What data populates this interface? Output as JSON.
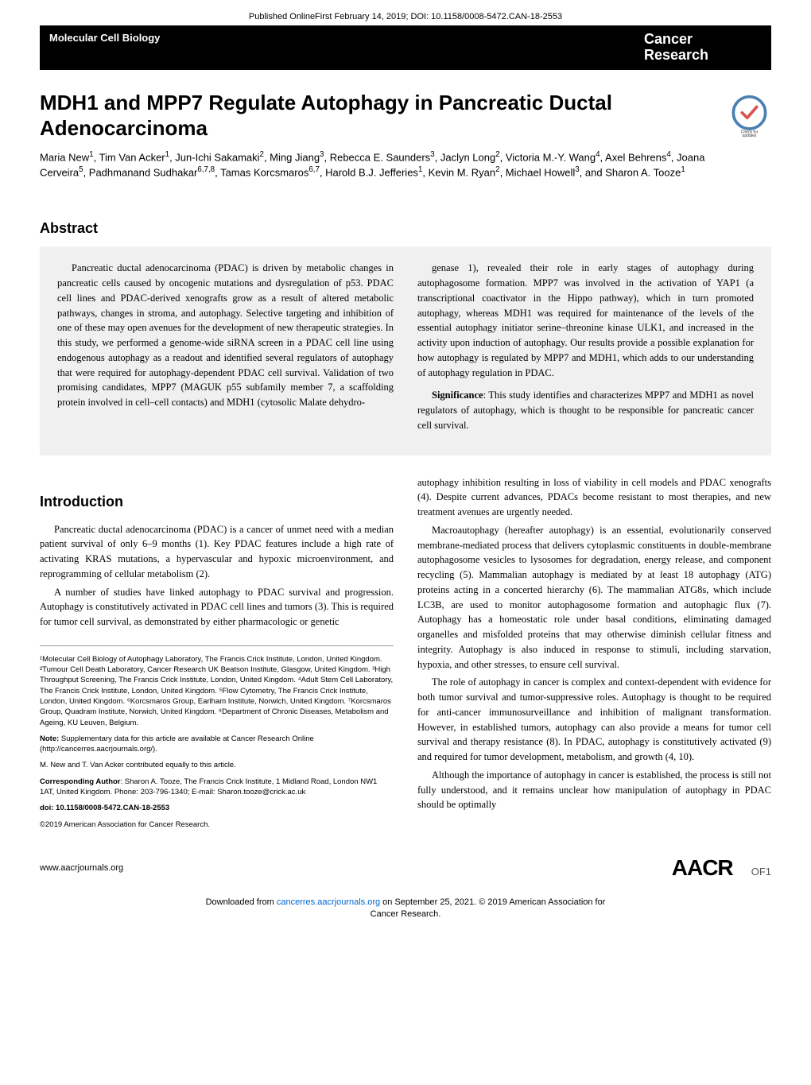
{
  "top_header": "Published OnlineFirst February 14, 2019; DOI: 10.1158/0008-5472.CAN-18-2553",
  "banner": {
    "left": "Molecular Cell Biology",
    "right_line1": "Cancer",
    "right_line2": "Research"
  },
  "title": "MDH1 and MPP7 Regulate Autophagy in Pancreatic Ductal Adenocarcinoma",
  "authors_html": "Maria New<sup>1</sup>, Tim Van Acker<sup>1</sup>, Jun-Ichi Sakamaki<sup>2</sup>, Ming Jiang<sup>3</sup>, Rebecca E. Saunders<sup>3</sup>, Jaclyn Long<sup>2</sup>, Victoria M.-Y. Wang<sup>4</sup>, Axel Behrens<sup>4</sup>, Joana Cerveira<sup>5</sup>, Padhmanand Sudhakar<sup>6,7,8</sup>, Tamas Korcsmaros<sup>6,7</sup>, Harold B.J. Jefferies<sup>1</sup>, Kevin M. Ryan<sup>2</sup>, Michael Howell<sup>3</sup>, and Sharon A. Tooze<sup>1</sup>",
  "badge_label": "Check for updates",
  "abstract_heading": "Abstract",
  "abstract": {
    "left": "Pancreatic ductal adenocarcinoma (PDAC) is driven by metabolic changes in pancreatic cells caused by oncogenic mutations and dysregulation of p53. PDAC cell lines and PDAC-derived xenografts grow as a result of altered metabolic pathways, changes in stroma, and autophagy. Selective targeting and inhibition of one of these may open avenues for the development of new therapeutic strategies. In this study, we performed a genome-wide siRNA screen in a PDAC cell line using endogenous autophagy as a readout and identified several regulators of autophagy that were required for autophagy-dependent PDAC cell survival. Validation of two promising candidates, MPP7 (MAGUK p55 subfamily member 7, a scaffolding protein involved in cell–cell contacts) and MDH1 (cytosolic Malate dehydro-",
    "right_p1": "genase 1), revealed their role in early stages of autophagy during autophagosome formation. MPP7 was involved in the activation of YAP1 (a transcriptional coactivator in the Hippo pathway), which in turn promoted autophagy, whereas MDH1 was required for maintenance of the levels of the essential autophagy initiator serine–threonine kinase ULK1, and increased in the activity upon induction of autophagy. Our results provide a possible explanation for how autophagy is regulated by MPP7 and MDH1, which adds to our understanding of autophagy regulation in PDAC.",
    "right_sig": "Significance: This study identifies and characterizes MPP7 and MDH1 as novel regulators of autophagy, which is thought to be responsible for pancreatic cancer cell survival."
  },
  "intro_heading": "Introduction",
  "intro": {
    "left_p1": "Pancreatic ductal adenocarcinoma (PDAC) is a cancer of unmet need with a median patient survival of only 6–9 months (1). Key PDAC features include a high rate of activating KRAS mutations, a hypervascular and hypoxic microenvironment, and reprogramming of cellular metabolism (2).",
    "left_p2": "A number of studies have linked autophagy to PDAC survival and progression. Autophagy is constitutively activated in PDAC cell lines and tumors (3). This is required for tumor cell survival, as demonstrated by either pharmacologic or genetic",
    "right_p1": "autophagy inhibition resulting in loss of viability in cell models and PDAC xenografts (4). Despite current advances, PDACs become resistant to most therapies, and new treatment avenues are urgently needed.",
    "right_p2": "Macroautophagy (hereafter autophagy) is an essential, evolutionarily conserved membrane-mediated process that delivers cytoplasmic constituents in double-membrane autophagosome vesicles to lysosomes for degradation, energy release, and component recycling (5). Mammalian autophagy is mediated by at least 18 autophagy (ATG) proteins acting in a concerted hierarchy (6). The mammalian ATG8s, which include LC3B, are used to monitor autophagosome formation and autophagic flux (7). Autophagy has a homeostatic role under basal conditions, eliminating damaged organelles and misfolded proteins that may otherwise diminish cellular fitness and integrity. Autophagy is also induced in response to stimuli, including starvation, hypoxia, and other stresses, to ensure cell survival.",
    "right_p3": "The role of autophagy in cancer is complex and context-dependent with evidence for both tumor survival and tumor-suppressive roles. Autophagy is thought to be required for anti-cancer immunosurveillance and inhibition of malignant transformation. However, in established tumors, autophagy can also provide a means for tumor cell survival and therapy resistance (8). In PDAC, autophagy is constitutively activated (9) and required for tumor development, metabolism, and growth (4, 10).",
    "right_p4": "Although the importance of autophagy in cancer is established, the process is still not fully understood, and it remains unclear how manipulation of autophagy in PDAC should be optimally"
  },
  "affiliations": {
    "p1": "¹Molecular Cell Biology of Autophagy Laboratory, The Francis Crick Institute, London, United Kingdom. ²Tumour Cell Death Laboratory, Cancer Research UK Beatson Institute, Glasgow, United Kingdom. ³High Throughput Screening, The Francis Crick Institute, London, United Kingdom. ⁴Adult Stem Cell Laboratory, The Francis Crick Institute, London, United Kingdom. ⁵Flow Cytometry, The Francis Crick Institute, London, United Kingdom. ⁶Korcsmaros Group, Earlham Institute, Norwich, United Kingdom. ⁷Korcsmaros Group, Quadram Institute, Norwich, United Kingdom. ⁸Department of Chronic Diseases, Metabolism and Ageing, KU Leuven, Belgium.",
    "note": "Note: Supplementary data for this article are available at Cancer Research Online (http://cancerres.aacrjournals.org/).",
    "equal": "M. New and T. Van Acker contributed equally to this article.",
    "corresponding": "Corresponding Author: Sharon A. Tooze, The Francis Crick Institute, 1 Midland Road, London NW1 1AT, United Kingdom. Phone: 203-796-1340; E-mail: Sharon.tooze@crick.ac.uk",
    "doi": "doi: 10.1158/0008-5472.CAN-18-2553",
    "copyright": "©2019 American Association for Cancer Research."
  },
  "footer": {
    "url": "www.aacrjournals.org",
    "logo": "AACR",
    "page": "OF1"
  },
  "download": {
    "text_before": "Downloaded from ",
    "link_text": "cancerres.aacrjournals.org",
    "text_after": " on September 25, 2021. © 2019 American Association for",
    "line2": "Cancer Research."
  },
  "colors": {
    "banner_bg": "#000000",
    "banner_fg": "#ffffff",
    "abstract_bg": "#f0f0f0",
    "link": "#0066cc",
    "badge_ring": "#4a7fb0",
    "badge_check": "#d9534f"
  }
}
